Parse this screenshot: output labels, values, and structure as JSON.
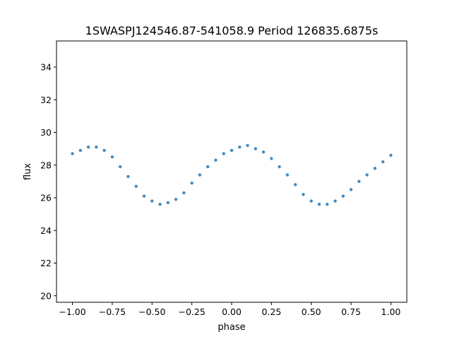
{
  "chart_data": {
    "type": "scatter",
    "title": "1SWASPJ124546.87-541058.9 Period 126835.6875s",
    "xlabel": "phase",
    "ylabel": "flux",
    "xlim": [
      -1.1,
      1.1
    ],
    "ylim": [
      19.6,
      35.6
    ],
    "x_ticks": [
      -1.0,
      -0.75,
      -0.5,
      -0.25,
      0.0,
      0.25,
      0.5,
      0.75,
      1.0
    ],
    "x_tick_labels": [
      "−1.00",
      "−0.75",
      "−0.50",
      "−0.25",
      "0.00",
      "0.25",
      "0.50",
      "0.75",
      "1.00"
    ],
    "y_ticks": [
      20,
      22,
      24,
      26,
      28,
      30,
      32,
      34
    ],
    "y_tick_labels": [
      "20",
      "22",
      "24",
      "26",
      "28",
      "30",
      "32",
      "34"
    ],
    "grid": false,
    "legend": "none",
    "marker_color": "#1f77b4",
    "series": [
      {
        "x": [
          -1.0,
          -0.95,
          -0.9,
          -0.85,
          -0.8,
          -0.75,
          -0.7,
          -0.65,
          -0.6,
          -0.55,
          -0.5,
          -0.45,
          -0.4,
          -0.35,
          -0.3,
          -0.25,
          -0.2,
          -0.15,
          -0.1,
          -0.05,
          0.0,
          0.05,
          0.1,
          0.15,
          0.2,
          0.25,
          0.3,
          0.35,
          0.4,
          0.45,
          0.5,
          0.55,
          0.6,
          0.65,
          0.7,
          0.75,
          0.8,
          0.85,
          0.9,
          0.95,
          1.0
        ],
        "y": [
          28.7,
          28.9,
          29.1,
          29.1,
          28.9,
          28.5,
          27.9,
          27.3,
          26.7,
          26.1,
          25.8,
          25.6,
          25.7,
          25.9,
          26.3,
          26.9,
          27.4,
          27.9,
          28.3,
          28.7,
          28.9,
          29.1,
          29.2,
          29.0,
          28.8,
          28.4,
          27.9,
          27.4,
          26.8,
          26.2,
          25.8,
          25.6,
          25.6,
          25.8,
          26.1,
          26.5,
          27.0,
          27.4,
          27.8,
          28.2,
          28.6
        ]
      }
    ]
  }
}
